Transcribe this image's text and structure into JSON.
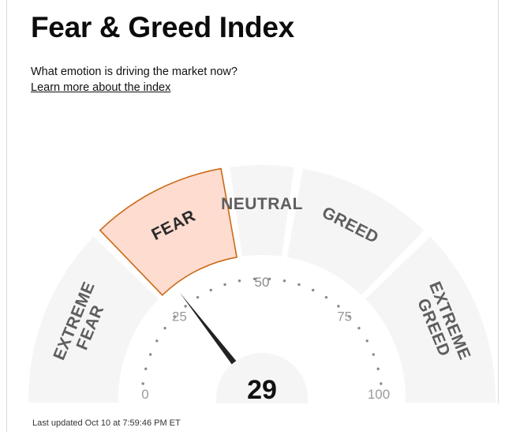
{
  "header": {
    "title": "Fear & Greed Index",
    "subtitle": "What emotion is driving the market now?",
    "learn_more": "Learn more about the index"
  },
  "gauge": {
    "value": "29",
    "ticks": [
      {
        "label": "0",
        "value": 0
      },
      {
        "label": "25",
        "value": 25
      },
      {
        "label": "50",
        "value": 50
      },
      {
        "label": "75",
        "value": 75
      },
      {
        "label": "100",
        "value": 100
      }
    ],
    "zones": [
      {
        "label": "EXTREME FEAR",
        "from": 0,
        "to": 25,
        "active": false
      },
      {
        "label": "FEAR",
        "from": 25,
        "to": 45,
        "active": true
      },
      {
        "label": "NEUTRAL",
        "from": 45,
        "to": 55,
        "active": false
      },
      {
        "label": "GREED",
        "from": 55,
        "to": 75,
        "active": false
      },
      {
        "label": "EXTREME GREED",
        "from": 75,
        "to": 100,
        "active": false
      }
    ]
  },
  "footer": {
    "last_updated": "Last updated Oct 10 at 7:59:46 PM ET"
  },
  "colors": {
    "zone_fill": "#f5f5f5",
    "active_fill": "#fedcd0",
    "active_stroke": "#cc6a18",
    "zone_text": "#5e5e5e",
    "needle": "#222222"
  }
}
